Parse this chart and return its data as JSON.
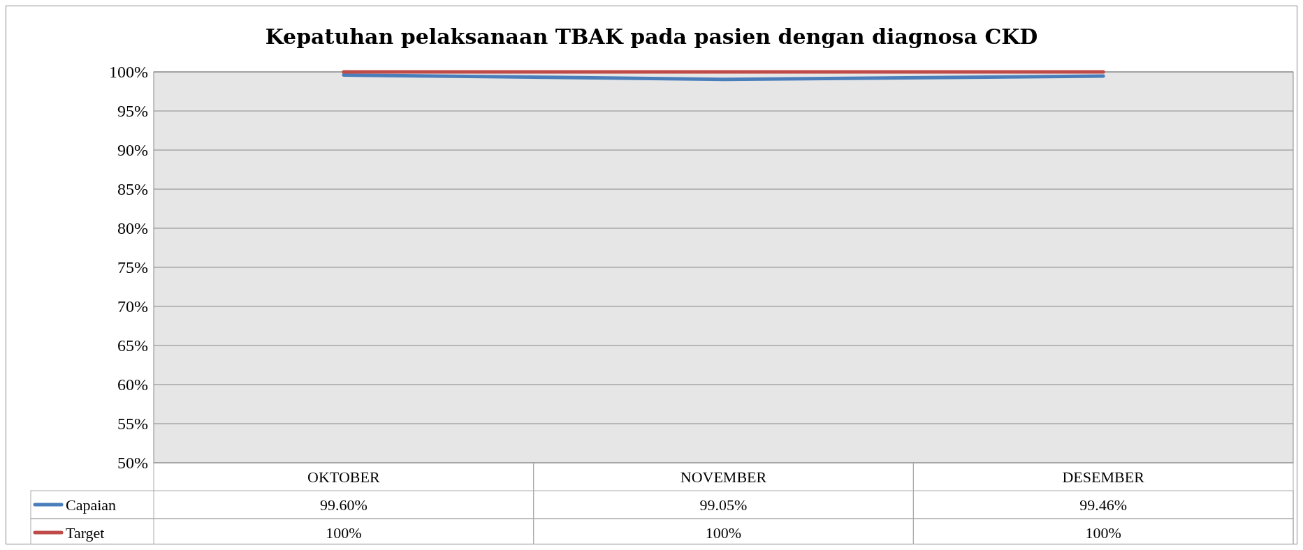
{
  "chart_data": {
    "type": "line",
    "title": "Kepatuhan pelaksanaan TBAK pada pasien dengan diagnosa CKD",
    "categories": [
      "OKTOBER",
      "NOVEMBER",
      "DESEMBER"
    ],
    "series": [
      {
        "name": "Capaian",
        "color": "#4a7ebb",
        "values": [
          99.6,
          99.05,
          99.46
        ],
        "value_labels": [
          "99.60%",
          "99.05%",
          "99.46%"
        ]
      },
      {
        "name": "Target",
        "color": "#be4b48",
        "values": [
          100,
          100,
          100
        ],
        "value_labels": [
          "100%",
          "100%",
          "100%"
        ]
      }
    ],
    "ylim": [
      50,
      100
    ],
    "yticks": [
      {
        "value": 50,
        "label": "50%"
      },
      {
        "value": 55,
        "label": "55%"
      },
      {
        "value": 60,
        "label": "60%"
      },
      {
        "value": 65,
        "label": "65%"
      },
      {
        "value": 70,
        "label": "70%"
      },
      {
        "value": 75,
        "label": "75%"
      },
      {
        "value": 80,
        "label": "80%"
      },
      {
        "value": 85,
        "label": "85%"
      },
      {
        "value": 90,
        "label": "90%"
      },
      {
        "value": 95,
        "label": "95%"
      },
      {
        "value": 100,
        "label": "100%"
      }
    ],
    "grid": "y",
    "legend": "bottom",
    "marker": "none",
    "line_style": "solid"
  }
}
